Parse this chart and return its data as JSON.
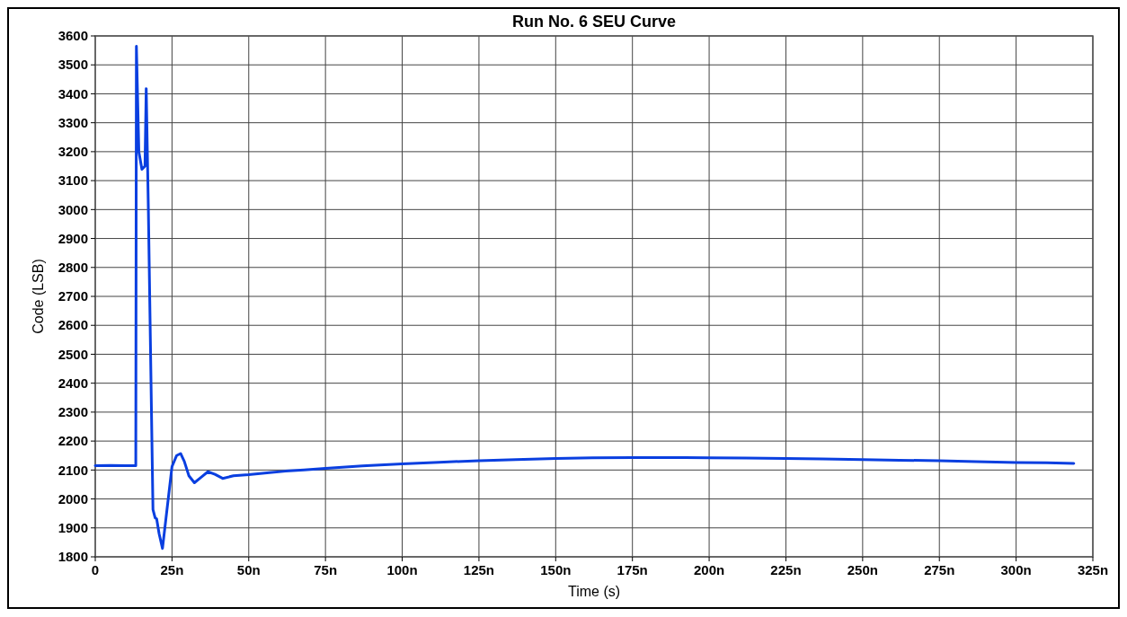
{
  "chart_data": {
    "type": "line",
    "title": "Run No. 6 SEU Curve",
    "xlabel": "Time (s)",
    "ylabel": "Code (LSB)",
    "xlim": [
      0,
      325
    ],
    "ylim": [
      1800,
      3600
    ],
    "xticks": [
      0,
      {
        "value": 25,
        "label": "25n"
      },
      {
        "value": 50,
        "label": "50n"
      },
      {
        "value": 75,
        "label": "75n"
      },
      {
        "value": 100,
        "label": "100n"
      },
      {
        "value": 125,
        "label": "125n"
      },
      {
        "value": 150,
        "label": "150n"
      },
      {
        "value": 175,
        "label": "175n"
      },
      {
        "value": 200,
        "label": "200n"
      },
      {
        "value": 225,
        "label": "225n"
      },
      {
        "value": 250,
        "label": "250n"
      },
      {
        "value": 275,
        "label": "275n"
      },
      {
        "value": 300,
        "label": "300n"
      },
      {
        "value": 325,
        "label": "325n"
      }
    ],
    "yticks": [
      1800,
      1900,
      2000,
      2100,
      2200,
      2300,
      2400,
      2500,
      2600,
      2700,
      2800,
      2900,
      3000,
      3100,
      3200,
      3300,
      3400,
      3500,
      3600
    ],
    "grid": true,
    "marker": "none",
    "line_style": "solid",
    "series": [
      {
        "color": "#0a3fe0",
        "x": [
          0,
          5,
          10,
          13.2,
          13.4,
          14.2,
          15.2,
          16.2,
          16.6,
          17.3,
          18.8,
          19.5,
          20,
          20.8,
          21.9,
          23,
          25,
          26.5,
          27.8,
          29,
          30.5,
          32.3,
          34.5,
          36.7,
          39,
          41.5,
          45,
          50,
          56.7,
          62,
          68,
          75,
          87,
          100,
          112,
          125,
          137,
          150,
          162,
          175,
          187,
          200,
          212,
          225,
          237,
          250,
          262,
          275,
          287,
          300,
          310,
          318.8
        ],
        "values": [
          2115,
          2116,
          2115,
          2115,
          3564,
          3200,
          3139,
          3150,
          3418,
          3000,
          1963,
          1935,
          1931,
          1880,
          1829,
          1930,
          2112,
          2150,
          2157,
          2130,
          2080,
          2056,
          2075,
          2094,
          2085,
          2071,
          2080,
          2084,
          2091,
          2096,
          2100,
          2106,
          2114,
          2121,
          2127,
          2132,
          2136,
          2140,
          2142,
          2143,
          2143,
          2142,
          2141,
          2140,
          2138,
          2136,
          2134,
          2132,
          2129,
          2126,
          2125,
          2123
        ]
      }
    ]
  }
}
